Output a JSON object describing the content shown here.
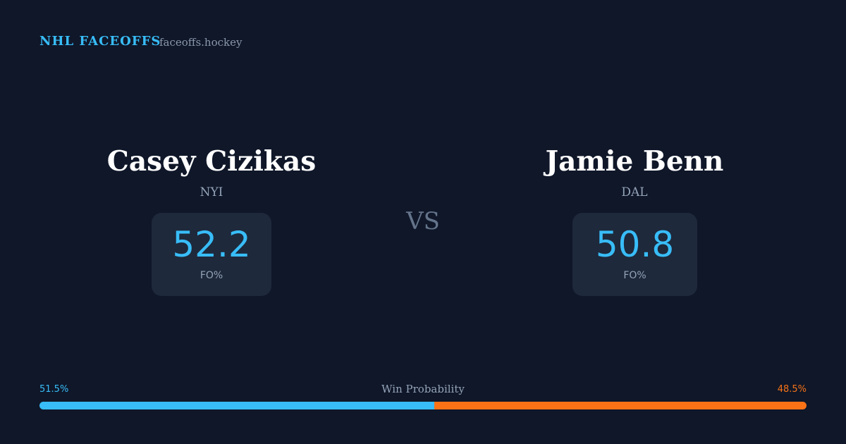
{
  "header": {
    "brand": "NHL FACEOFFS",
    "site": "faceoffs.hockey"
  },
  "players": [
    {
      "name": "Casey Cizikas",
      "team": "NYI",
      "fo_pct": 52.2,
      "fo_label": "FO%"
    },
    {
      "name": "Jamie Benn",
      "team": "DAL",
      "fo_pct": 50.8,
      "fo_label": "FO%"
    }
  ],
  "versus": "VS",
  "win_probability": {
    "title": "Win Probability",
    "values": [
      51.5,
      48.5
    ],
    "value_labels": [
      "51.5%",
      "48.5%"
    ],
    "colors": [
      "#38bdf8",
      "#f97316"
    ]
  }
}
